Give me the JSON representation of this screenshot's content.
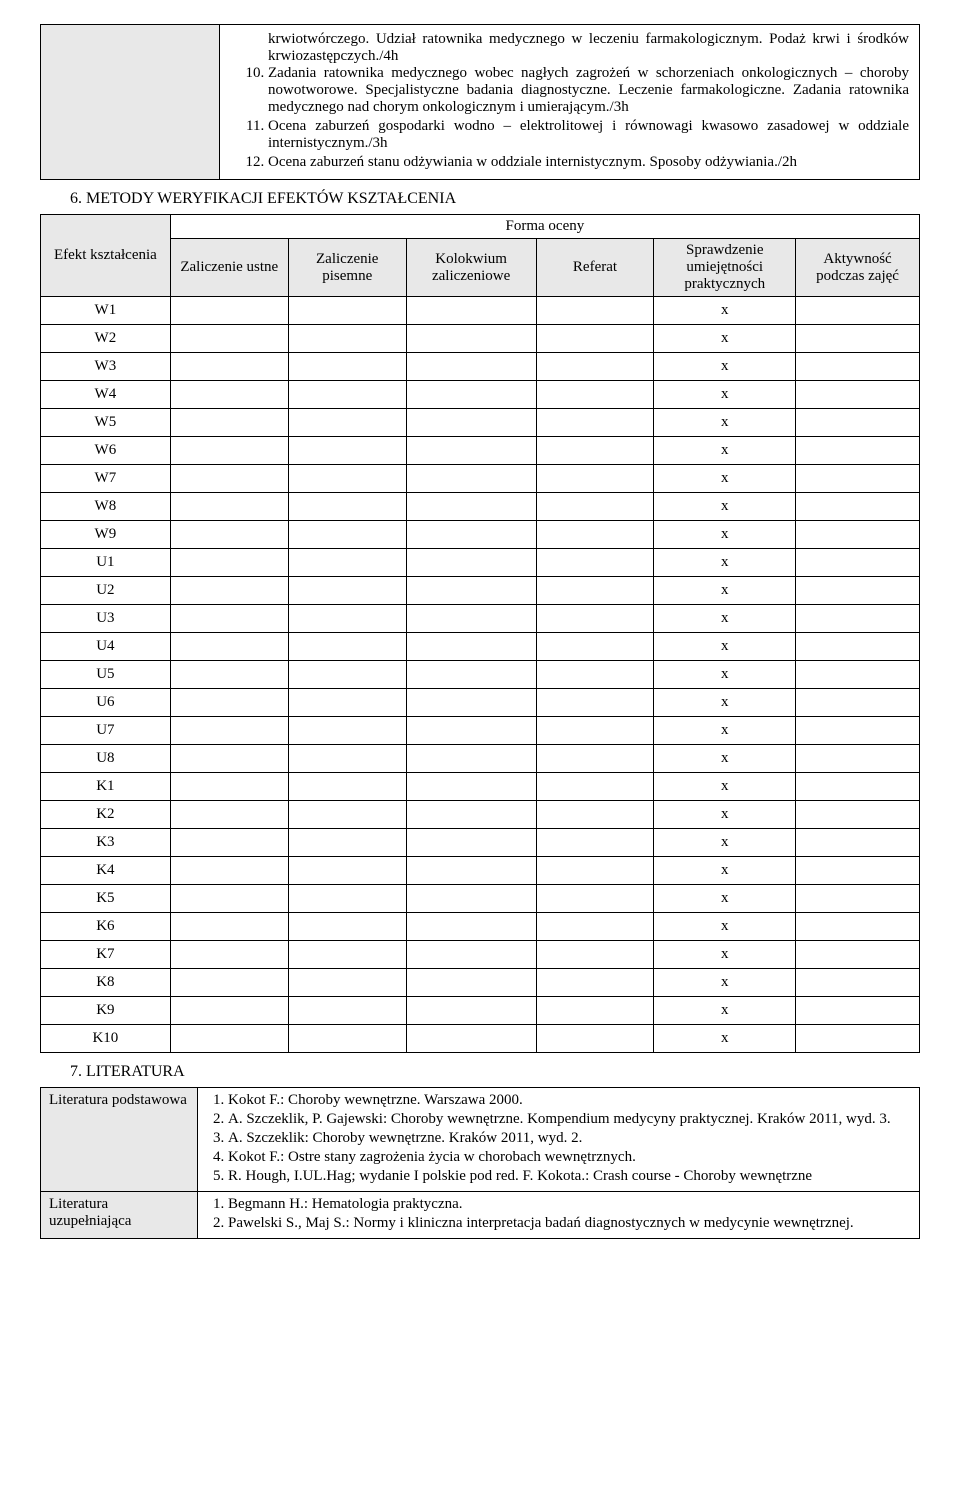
{
  "topbox": {
    "frag": "krwiotwórczego. Udział ratownika medycznego w leczeniu farmakologicznym. Podaż krwi i środków krwiozastępczych./4h",
    "item10": "Zadania ratownika medycznego wobec nagłych zagrożeń w schorzeniach onkologicznych – choroby nowotworowe. Specjalistyczne badania diagnostyczne. Leczenie farmakologiczne. Zadania ratownika medycznego nad chorym onkologicznym i umierającym./3h",
    "item11": "Ocena zaburzeń gospodarki wodno – elektrolitowej i równowagi kwasowo zasadowej w oddziale internistycznym./3h",
    "item12": "Ocena zaburzeń stanu odżywiania w oddziale internistycznym. Sposoby odżywiania./2h"
  },
  "section6": {
    "num": "6.",
    "title": "METODY WERYFIKACJI EFEKTÓW KSZTAŁCENIA"
  },
  "evalTable": {
    "rowHeader": "Efekt kształcenia",
    "formHeader": "Forma oceny",
    "cols": {
      "c1": "Zaliczenie ustne",
      "c2": "Zaliczenie pisemne",
      "c3": "Kolokwium zaliczeniowe",
      "c4": "Referat",
      "c5": "Sprawdzenie umiejętności praktycznych",
      "c6": "Aktywność podczas zajęć"
    },
    "mark": "x",
    "rows": [
      "W1",
      "W2",
      "W3",
      "W4",
      "W5",
      "W6",
      "W7",
      "W8",
      "W9",
      "U1",
      "U2",
      "U3",
      "U4",
      "U5",
      "U6",
      "U7",
      "U8",
      "K1",
      "K2",
      "K3",
      "K4",
      "K5",
      "K6",
      "K7",
      "K8",
      "K9",
      "K10"
    ]
  },
  "section7": {
    "num": "7.",
    "title": "LITERATURA"
  },
  "lit": {
    "basicLabel": "Literatura podstawowa",
    "suppLabel": "Literatura uzupełniająca",
    "basic": {
      "i1": "Kokot F.: Choroby wewnętrzne. Warszawa 2000.",
      "i2": "A. Szczeklik, P. Gajewski: Choroby wewnętrzne. Kompendium medycyny praktycznej. Kraków 2011, wyd. 3.",
      "i3": "A. Szczeklik: Choroby wewnętrzne. Kraków 2011, wyd. 2.",
      "i4": "Kokot F.: Ostre stany zagrożenia życia w chorobach wewnętrznych.",
      "i5": "R. Hough, I.UL.Hag; wydanie I polskie pod red. F. Kokota.: Crash course - Choroby wewnętrzne"
    },
    "supp": {
      "i1": "Begmann H.: Hematologia praktyczna.",
      "i2": "Pawelski S., Maj S.: Normy i kliniczna interpretacja badań diagnostycznych w medycynie wewnętrznej."
    }
  },
  "style": {
    "shadeColor": "#e8e8e8",
    "borderColor": "#000000",
    "bodyFont": "Times New Roman",
    "bodyFontSize": 15
  }
}
